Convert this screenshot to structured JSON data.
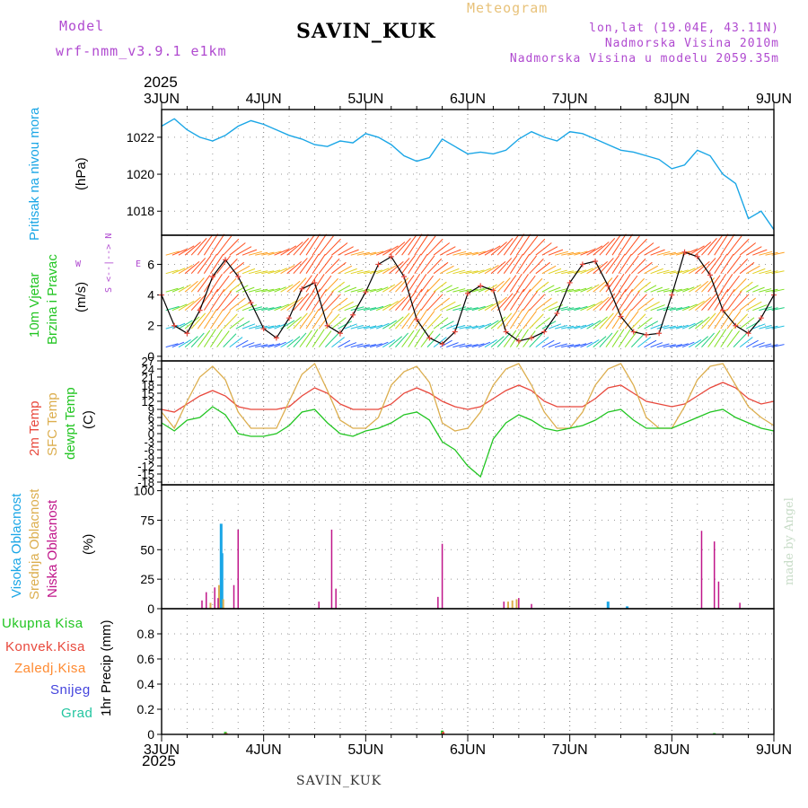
{
  "header": {
    "model_label": "Model",
    "model_name": "wrf-nmm_v3.9.1 e1km",
    "meteogram": "Meteogram",
    "station": "SAVIN_KUK",
    "lonlat": "lon,lat (19.04E, 43.11N)",
    "altitude": "Nadmorska Visina 2010m",
    "model_altitude": "Nadmorska Visina u modelu 2059.35m",
    "footer_station": "SAVIN_KUK",
    "credit": "made by Angel",
    "year_top": "2025",
    "year_bottom": "2025"
  },
  "colors": {
    "pressure": "#1aa6e6",
    "temp2m": "#e8483c",
    "sfc": "#dcae4e",
    "dewpoint": "#22c522",
    "high_cloud": "#1aa6e6",
    "mid_cloud": "#dcae4e",
    "low_cloud": "#c0168a",
    "header_purple": "#b04ad0",
    "header_gold": "#e8c27a"
  },
  "days": [
    "3JUN",
    "4JUN",
    "5JUN",
    "6JUN",
    "7JUN",
    "8JUN",
    "9JUN"
  ],
  "panel_labels": {
    "pressure": {
      "main": "Pritisak na nivou mora",
      "unit": "(hPa)"
    },
    "wind": {
      "line1": "10m Vjetar",
      "line2": "Brzina i Pravac",
      "unit": "(m/s)",
      "compass_ns": "S <--|--> N",
      "compass_w": "W",
      "compass_e": "E"
    },
    "temp": {
      "l1": "2m Temp",
      "l2": "SFC Temp",
      "l3": "dewpt Temp",
      "unit": "(C)"
    },
    "cloud": {
      "l1": "Visoka Oblacnost",
      "l2": "Srednja Oblacnost",
      "l3": "Niska Oblacnost",
      "unit": "(%)"
    },
    "precip": {
      "l1": "Ukupna Kisa",
      "l2": "Konvek.Kisa",
      "l3": "Zaledj.Kisa",
      "l4": "Snijeg",
      "l5": "Grad",
      "unit": "1hr Precip (mm)"
    }
  },
  "chart_data": [
    {
      "type": "line",
      "name": "pressure",
      "x_unit": "hours since 3JUN 00",
      "ylim": [
        1016.7,
        1023.5
      ],
      "yticks": [
        1018,
        1020,
        1022
      ],
      "x": [
        0,
        3,
        6,
        9,
        12,
        15,
        18,
        21,
        24,
        27,
        30,
        33,
        36,
        39,
        42,
        45,
        48,
        51,
        54,
        57,
        60,
        63,
        66,
        69,
        72,
        75,
        78,
        81,
        84,
        87,
        90,
        93,
        96,
        99,
        102,
        105,
        108,
        111,
        114,
        117,
        120,
        123,
        126,
        129,
        132,
        135,
        138,
        141,
        144
      ],
      "values": [
        1022.6,
        1023.0,
        1022.4,
        1022.0,
        1021.8,
        1022.1,
        1022.6,
        1022.9,
        1022.7,
        1022.4,
        1022.1,
        1021.9,
        1021.6,
        1021.5,
        1021.8,
        1021.7,
        1022.2,
        1022.0,
        1021.6,
        1021.0,
        1020.7,
        1020.9,
        1021.9,
        1021.5,
        1021.1,
        1021.2,
        1021.1,
        1021.3,
        1021.9,
        1022.3,
        1022.0,
        1021.8,
        1022.3,
        1022.2,
        1021.9,
        1021.6,
        1021.3,
        1021.2,
        1021.0,
        1020.8,
        1020.3,
        1020.5,
        1021.3,
        1021.0,
        1020.0,
        1019.5,
        1017.6,
        1018.0,
        1017.0
      ]
    },
    {
      "type": "line",
      "name": "wind_speed",
      "x_unit": "hours since 3JUN 00",
      "ylim": [
        -0.3,
        7.9
      ],
      "yticks": [
        0,
        2,
        4,
        6
      ],
      "x": [
        0,
        3,
        6,
        9,
        12,
        15,
        18,
        21,
        24,
        27,
        30,
        33,
        36,
        39,
        42,
        45,
        48,
        51,
        54,
        57,
        60,
        63,
        66,
        69,
        72,
        75,
        78,
        81,
        84,
        87,
        90,
        93,
        96,
        99,
        102,
        105,
        108,
        111,
        114,
        117,
        120,
        123,
        126,
        129,
        132,
        135,
        138,
        141,
        144
      ],
      "values": [
        4.0,
        2.0,
        1.5,
        3.0,
        5.2,
        6.3,
        5.2,
        3.5,
        1.8,
        1.2,
        2.5,
        4.4,
        4.8,
        2.0,
        1.5,
        2.7,
        4.2,
        6.0,
        6.5,
        5.2,
        2.4,
        1.2,
        0.8,
        1.6,
        4.1,
        4.6,
        4.3,
        1.6,
        1.0,
        1.2,
        1.6,
        2.8,
        4.8,
        6.0,
        6.2,
        4.6,
        2.6,
        1.6,
        1.4,
        1.5,
        4.0,
        6.8,
        6.5,
        5.3,
        3.0,
        2.0,
        1.5,
        2.5,
        4.0
      ]
    },
    {
      "type": "line",
      "name": "temperatures",
      "x_unit": "hours since 3JUN 00",
      "ylim": [
        -19,
        27
      ],
      "yticks": [
        27,
        24,
        21,
        18,
        15,
        12,
        9,
        6,
        3,
        0,
        -3,
        -6,
        -9,
        -12,
        -15,
        -18
      ],
      "x": [
        0,
        3,
        6,
        9,
        12,
        15,
        18,
        21,
        24,
        27,
        30,
        33,
        36,
        39,
        42,
        45,
        48,
        51,
        54,
        57,
        60,
        63,
        66,
        69,
        72,
        75,
        78,
        81,
        84,
        87,
        90,
        93,
        96,
        99,
        102,
        105,
        108,
        111,
        114,
        117,
        120,
        123,
        126,
        129,
        132,
        135,
        138,
        141,
        144
      ],
      "series": [
        {
          "name": "2m Temp",
          "values": [
            9,
            8,
            11,
            14,
            16,
            14,
            10,
            9,
            9,
            9,
            10,
            14,
            17,
            15,
            11,
            9,
            9,
            9,
            11,
            15,
            17,
            15,
            12,
            10,
            9,
            10,
            13,
            16,
            18,
            16,
            12,
            10,
            10,
            10,
            13,
            17,
            18,
            15,
            12,
            11,
            10,
            11,
            14,
            17,
            19,
            17,
            13,
            11,
            12
          ]
        },
        {
          "name": "SFC Temp",
          "values": [
            8,
            2,
            12,
            21,
            25,
            20,
            8,
            2,
            2,
            2,
            12,
            22,
            26,
            16,
            5,
            2,
            2,
            6,
            18,
            23,
            25,
            19,
            4,
            1,
            2,
            8,
            18,
            24,
            26,
            18,
            8,
            2,
            2,
            8,
            18,
            24,
            26,
            18,
            6,
            2,
            2,
            10,
            20,
            25,
            26,
            18,
            10,
            6,
            3
          ]
        },
        {
          "name": "dewpt Temp",
          "values": [
            4,
            1,
            5,
            6,
            10,
            7,
            0,
            -1,
            -1,
            0,
            3,
            8,
            9,
            4,
            0,
            -1,
            1,
            2,
            4,
            7,
            8,
            5,
            -3,
            -6,
            -12,
            -16,
            -2,
            4,
            7,
            5,
            2,
            1,
            2,
            3,
            5,
            8,
            9,
            5,
            2,
            2,
            2,
            4,
            6,
            8,
            9,
            6,
            4,
            2,
            1
          ]
        }
      ]
    },
    {
      "type": "bar",
      "name": "cloudiness",
      "x_unit": "hours since 3JUN 00",
      "ylim": [
        0,
        105
      ],
      "yticks": [
        0,
        25,
        50,
        75,
        100
      ],
      "series": [
        {
          "name": "Visoka Oblacnost",
          "x": [
            14.0,
            14.2,
            105.0,
            109.5
          ],
          "values": [
            72,
            47,
            6,
            2
          ]
        },
        {
          "name": "Srednja Oblacnost",
          "x": [
            11.5,
            13.5,
            14.5,
            81.5,
            82.5,
            83.5
          ],
          "values": [
            5,
            20,
            8,
            6,
            7,
            8
          ]
        },
        {
          "name": "Niska Oblacnost",
          "x": [
            9.5,
            10.5,
            12.5,
            13.3,
            17.0,
            18.0,
            37.0,
            40.0,
            41.0,
            65.0,
            66.0,
            80.5,
            84.0,
            87.0,
            127.0,
            130.0,
            131.0,
            136.0
          ],
          "values": [
            7,
            14,
            18,
            9,
            20,
            67,
            6,
            67,
            17,
            10,
            55,
            6,
            9,
            4,
            66,
            57,
            23,
            5
          ]
        }
      ]
    },
    {
      "type": "bar",
      "name": "precipitation",
      "x_unit": "hours since 3JUN 00",
      "ylim": [
        0,
        1.0
      ],
      "yticks": [
        0,
        0.2,
        0.4,
        0.6,
        0.8
      ],
      "series": [
        {
          "name": "Ukupna Kisa",
          "x": [
            15,
            66,
            130
          ],
          "values": [
            0.02,
            0.03,
            0.01
          ]
        },
        {
          "name": "Konvek.Kisa",
          "x": [
            15,
            66
          ],
          "values": [
            0.01,
            0.02
          ]
        },
        {
          "name": "Zaledj.Kisa",
          "x": [],
          "values": []
        },
        {
          "name": "Snijeg",
          "x": [],
          "values": []
        },
        {
          "name": "Grad",
          "x": [],
          "values": []
        }
      ]
    }
  ]
}
